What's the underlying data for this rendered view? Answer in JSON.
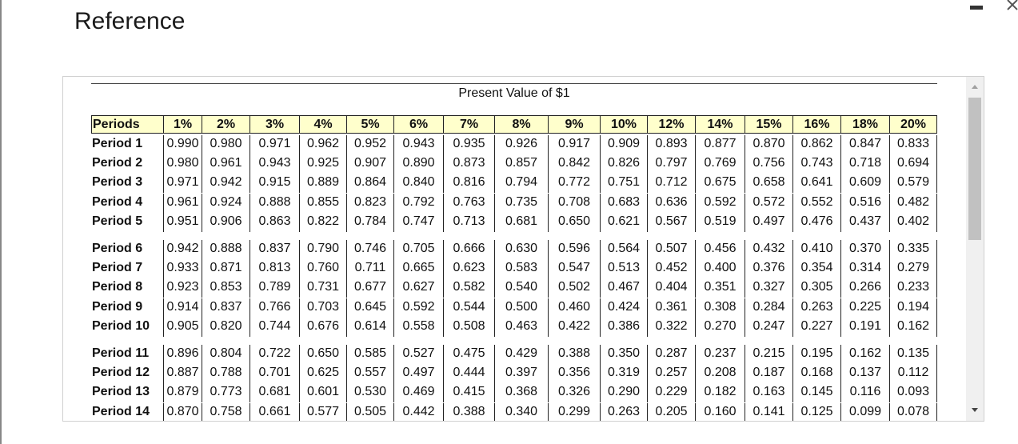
{
  "header": {
    "title": "Reference"
  },
  "table": {
    "title": "Present Value of $1",
    "columns": [
      "Periods",
      "1%",
      "2%",
      "3%",
      "4%",
      "5%",
      "6%",
      "7%",
      "8%",
      "9%",
      "10%",
      "12%",
      "14%",
      "15%",
      "16%",
      "18%",
      "20%"
    ],
    "rows": [
      [
        "Period 1",
        "0.990",
        "0.980",
        "0.971",
        "0.962",
        "0.952",
        "0.943",
        "0.935",
        "0.926",
        "0.917",
        "0.909",
        "0.893",
        "0.877",
        "0.870",
        "0.862",
        "0.847",
        "0.833"
      ],
      [
        "Period 2",
        "0.980",
        "0.961",
        "0.943",
        "0.925",
        "0.907",
        "0.890",
        "0.873",
        "0.857",
        "0.842",
        "0.826",
        "0.797",
        "0.769",
        "0.756",
        "0.743",
        "0.718",
        "0.694"
      ],
      [
        "Period 3",
        "0.971",
        "0.942",
        "0.915",
        "0.889",
        "0.864",
        "0.840",
        "0.816",
        "0.794",
        "0.772",
        "0.751",
        "0.712",
        "0.675",
        "0.658",
        "0.641",
        "0.609",
        "0.579"
      ],
      [
        "Period 4",
        "0.961",
        "0.924",
        "0.888",
        "0.855",
        "0.823",
        "0.792",
        "0.763",
        "0.735",
        "0.708",
        "0.683",
        "0.636",
        "0.592",
        "0.572",
        "0.552",
        "0.516",
        "0.482"
      ],
      [
        "Period 5",
        "0.951",
        "0.906",
        "0.863",
        "0.822",
        "0.784",
        "0.747",
        "0.713",
        "0.681",
        "0.650",
        "0.621",
        "0.567",
        "0.519",
        "0.497",
        "0.476",
        "0.437",
        "0.402"
      ],
      [
        "Period 6",
        "0.942",
        "0.888",
        "0.837",
        "0.790",
        "0.746",
        "0.705",
        "0.666",
        "0.630",
        "0.596",
        "0.564",
        "0.507",
        "0.456",
        "0.432",
        "0.410",
        "0.370",
        "0.335"
      ],
      [
        "Period 7",
        "0.933",
        "0.871",
        "0.813",
        "0.760",
        "0.711",
        "0.665",
        "0.623",
        "0.583",
        "0.547",
        "0.513",
        "0.452",
        "0.400",
        "0.376",
        "0.354",
        "0.314",
        "0.279"
      ],
      [
        "Period 8",
        "0.923",
        "0.853",
        "0.789",
        "0.731",
        "0.677",
        "0.627",
        "0.582",
        "0.540",
        "0.502",
        "0.467",
        "0.404",
        "0.351",
        "0.327",
        "0.305",
        "0.266",
        "0.233"
      ],
      [
        "Period 9",
        "0.914",
        "0.837",
        "0.766",
        "0.703",
        "0.645",
        "0.592",
        "0.544",
        "0.500",
        "0.460",
        "0.424",
        "0.361",
        "0.308",
        "0.284",
        "0.263",
        "0.225",
        "0.194"
      ],
      [
        "Period 10",
        "0.905",
        "0.820",
        "0.744",
        "0.676",
        "0.614",
        "0.558",
        "0.508",
        "0.463",
        "0.422",
        "0.386",
        "0.322",
        "0.270",
        "0.247",
        "0.227",
        "0.191",
        "0.162"
      ],
      [
        "Period 11",
        "0.896",
        "0.804",
        "0.722",
        "0.650",
        "0.585",
        "0.527",
        "0.475",
        "0.429",
        "0.388",
        "0.350",
        "0.287",
        "0.237",
        "0.215",
        "0.195",
        "0.162",
        "0.135"
      ],
      [
        "Period 12",
        "0.887",
        "0.788",
        "0.701",
        "0.625",
        "0.557",
        "0.497",
        "0.444",
        "0.397",
        "0.356",
        "0.319",
        "0.257",
        "0.208",
        "0.187",
        "0.168",
        "0.137",
        "0.112"
      ],
      [
        "Period 13",
        "0.879",
        "0.773",
        "0.681",
        "0.601",
        "0.530",
        "0.469",
        "0.415",
        "0.368",
        "0.326",
        "0.290",
        "0.229",
        "0.182",
        "0.163",
        "0.145",
        "0.116",
        "0.093"
      ],
      [
        "Period 14",
        "0.870",
        "0.758",
        "0.661",
        "0.577",
        "0.505",
        "0.442",
        "0.388",
        "0.340",
        "0.299",
        "0.263",
        "0.205",
        "0.160",
        "0.141",
        "0.125",
        "0.099",
        "0.078"
      ]
    ]
  }
}
